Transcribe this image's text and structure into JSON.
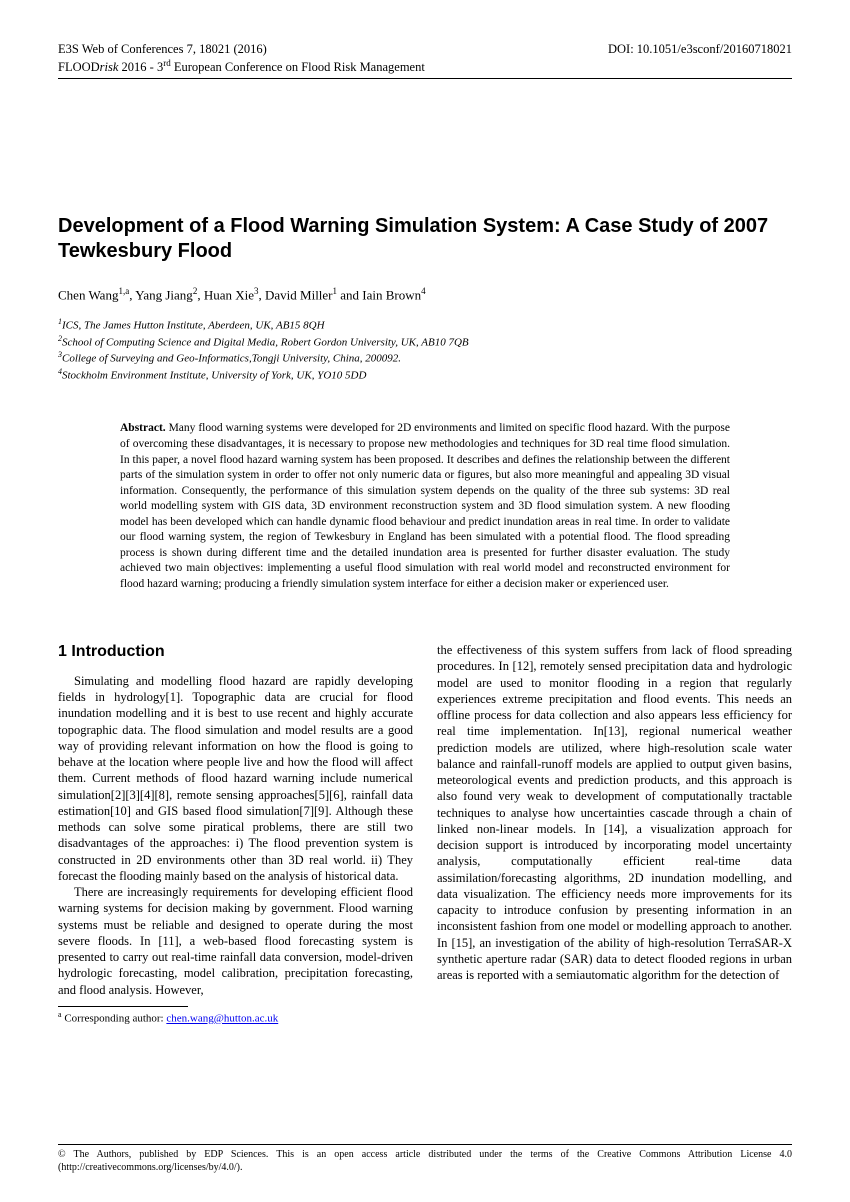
{
  "header": {
    "left_line1": "E3S Web of Conferences  7,  18021 (2016)",
    "left_line2_pre": "FLOOD",
    "left_line2_italic": "risk",
    "left_line2_post": " 2016 - 3",
    "left_line2_sup": "rd",
    "left_line2_tail": " European Conference on Flood Risk Management",
    "right": "DOI: 10.1051/e3sconf/20160718021"
  },
  "title": "Development of a Flood Warning Simulation System: A Case Study of 2007 Tewkesbury Flood",
  "authors": {
    "a1_name": "Chen Wang",
    "a1_sup": "1,a",
    "a2_name": "Yang Jiang",
    "a2_sup": "2",
    "a3_name": "Huan Xie",
    "a3_sup": "3",
    "a4_name": "David Miller",
    "a4_sup": "1",
    "a5_name": "Iain Brown",
    "a5_sup": "4",
    "sep": ", ",
    "and": " and "
  },
  "affiliations": {
    "l1_sup": "1",
    "l1": "ICS, The James Hutton Institute, Aberdeen, UK, AB15 8QH",
    "l2_sup": "2",
    "l2": "School of Computing Science and Digital Media, Robert Gordon University, UK, AB10 7QB",
    "l3_sup": "3",
    "l3": "College of Surveying and Geo-Informatics,Tongji University, China, 200092.",
    "l4_sup": "4",
    "l4": "Stockholm Environment Institute, University of York, UK, YO10 5DD"
  },
  "abstract": {
    "label": "Abstract.",
    "text": " Many flood warning systems were developed for 2D environments and limited on specific flood hazard. With the purpose of overcoming these disadvantages, it is necessary to propose new methodologies and techniques for 3D real time flood simulation. In this paper, a novel flood hazard warning system has been proposed. It describes and defines the relationship between the different parts of the simulation system in order to offer not only numeric data or figures, but also more meaningful and appealing 3D visual information. Consequently, the performance of this simulation system depends on the quality of the three sub systems: 3D real world modelling system with GIS data, 3D environment reconstruction system and 3D flood simulation system. A new flooding model has been developed which can handle dynamic flood behaviour and predict inundation areas in real time. In order to validate our flood warning system, the region of Tewkesbury in England has been simulated with a potential flood. The flood spreading process is shown during different time and the detailed inundation area is presented for further disaster evaluation. The study achieved two main objectives: implementing a useful flood simulation with real world model and reconstructed environment for flood hazard warning; producing a friendly simulation system interface for either a decision maker or experienced user."
  },
  "section1_heading": "1 Introduction",
  "col1_p1": "Simulating and modelling flood hazard are rapidly developing fields in hydrology[1]. Topographic data are crucial for flood inundation modelling and it is best to use recent and highly accurate topographic data. The flood simulation and model results are a good way of providing relevant information on how the flood is going to behave at the location where people live and how the flood will affect them. Current methods of flood hazard warning include numerical simulation[2][3][4][8], remote sensing approaches[5][6], rainfall data estimation[10] and GIS based flood simulation[7][9]. Although these methods can solve some piratical problems, there are still two disadvantages of the approaches: i) The flood prevention system is constructed in 2D environments other than 3D real world. ii) They forecast the flooding mainly based on the analysis of historical data.",
  "col1_p2": "There are increasingly requirements for developing efficient flood warning systems for decision making by government. Flood warning systems must be reliable and designed to operate during the most severe floods. In [11], a web-based flood forecasting system is presented to carry out real-time rainfall data conversion, model-driven hydrologic forecasting, model calibration, precipitation forecasting, and flood analysis. However,",
  "col2_p1": "the effectiveness of this system suffers from lack of flood spreading procedures. In [12], remotely sensed precipitation data and hydrologic model are used to monitor flooding in a region that regularly experiences extreme precipitation and flood events. This needs an offline process for data collection and also appears less efficiency for real time implementation. In[13], regional numerical weather prediction models are utilized, where high-resolution scale water balance and rainfall-runoff models are applied to output given basins, meteorological events and prediction products, and this approach is also found very weak to development of computationally tractable techniques to analyse how uncertainties cascade through a chain of linked non-linear models. In [14], a visualization approach for decision support is introduced by incorporating model uncertainty analysis, computationally efficient real-time data assimilation/forecasting algorithms, 2D inundation modelling, and data visualization. The efficiency needs more improvements for its capacity to introduce confusion by presenting information in an inconsistent fashion from one model or modelling approach to another. In [15], an investigation of the ability of high-resolution TerraSAR-X synthetic aperture radar (SAR) data to detect flooded regions in urban areas is reported with a semiautomatic algorithm for the detection of",
  "footnote": {
    "sup": "a",
    "label": " Corresponding author: ",
    "email": "chen.wang@hutton.ac.uk"
  },
  "footer": "© The Authors, published by EDP Sciences. This is an open access article distributed under the terms of the Creative Commons Attribution License 4.0 (http://creativecommons.org/licenses/by/4.0/)."
}
